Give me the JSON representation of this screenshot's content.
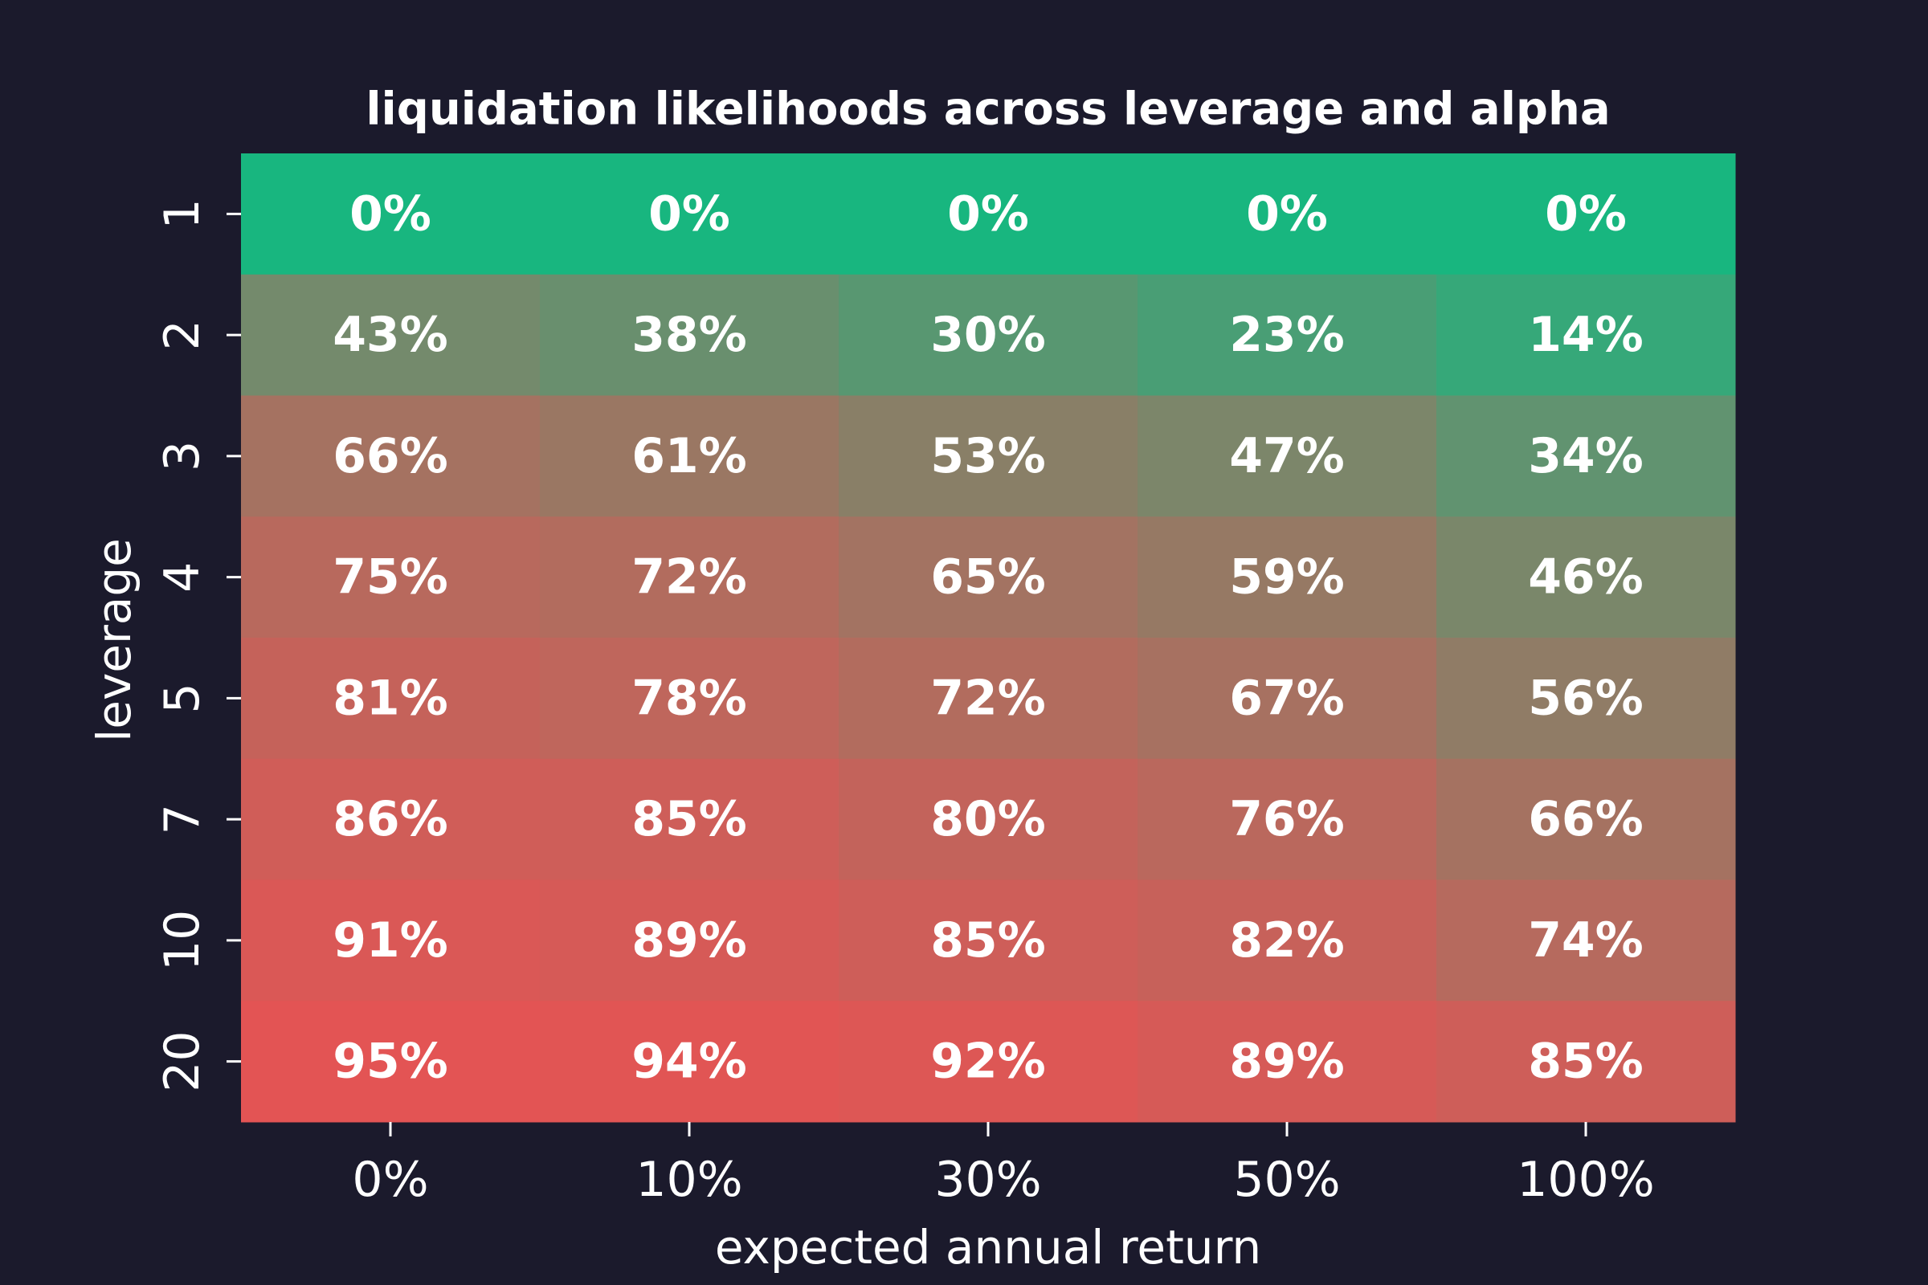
{
  "chart_data": {
    "type": "heatmap",
    "title": "liquidation likelihoods across leverage and alpha",
    "xlabel": "expected annual return",
    "ylabel": "leverage",
    "x": [
      "0%",
      "10%",
      "30%",
      "50%",
      "100%"
    ],
    "y": [
      "1",
      "2",
      "3",
      "4",
      "5",
      "7",
      "10",
      "20"
    ],
    "values": [
      [
        0,
        0,
        0,
        0,
        0
      ],
      [
        43,
        38,
        30,
        23,
        14
      ],
      [
        66,
        61,
        53,
        47,
        34
      ],
      [
        75,
        72,
        65,
        59,
        46
      ],
      [
        81,
        78,
        72,
        67,
        56
      ],
      [
        86,
        85,
        80,
        76,
        66
      ],
      [
        91,
        89,
        85,
        82,
        74
      ],
      [
        95,
        94,
        92,
        89,
        85
      ]
    ],
    "value_labels": [
      [
        "0%",
        "0%",
        "0%",
        "0%",
        "0%"
      ],
      [
        "43%",
        "38%",
        "30%",
        "23%",
        "14%"
      ],
      [
        "66%",
        "61%",
        "53%",
        "47%",
        "34%"
      ],
      [
        "75%",
        "72%",
        "65%",
        "59%",
        "46%"
      ],
      [
        "81%",
        "78%",
        "72%",
        "67%",
        "56%"
      ],
      [
        "86%",
        "85%",
        "80%",
        "76%",
        "66%"
      ],
      [
        "91%",
        "89%",
        "85%",
        "82%",
        "74%"
      ],
      [
        "95%",
        "94%",
        "92%",
        "89%",
        "85%"
      ]
    ],
    "colormap": [
      "#18b67f",
      "#e35454"
    ]
  }
}
